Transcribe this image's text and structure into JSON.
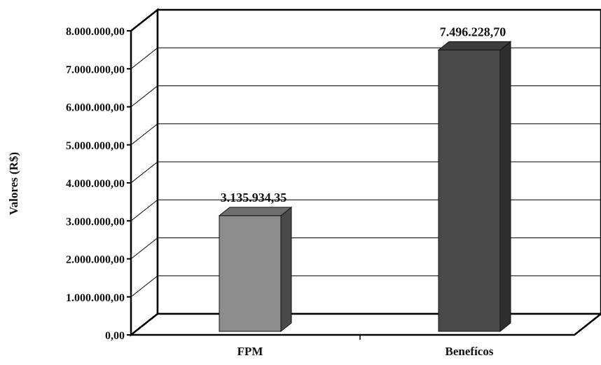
{
  "chart_data": {
    "type": "bar",
    "title": "",
    "xlabel": "",
    "ylabel": "Valores (R$)",
    "categories": [
      "FPM",
      "Benefícos"
    ],
    "values": [
      3135934.35,
      7496228.7
    ],
    "data_labels": [
      "3.135.934,35",
      "7.496.228,70"
    ],
    "ylim": [
      0,
      8000000
    ],
    "yticks": [
      0,
      1000000,
      2000000,
      3000000,
      4000000,
      5000000,
      6000000,
      7000000,
      8000000
    ],
    "ytick_labels": [
      "0,00",
      "1.000.000,00",
      "2.000.000,00",
      "3.000.000,00",
      "4.000.000,00",
      "5.000.000,00",
      "6.000.000,00",
      "7.000.000,00",
      "8.000.000,00"
    ],
    "grid": true,
    "style": "3d",
    "colors": {
      "fpm_front": "#8c8c8c",
      "fpm_side": "#4a4a4a",
      "fpm_top": "#6e6e6e",
      "ben_front": "#4a4a4a",
      "ben_side": "#2e2e2e",
      "ben_top": "#3c3c3c"
    }
  }
}
